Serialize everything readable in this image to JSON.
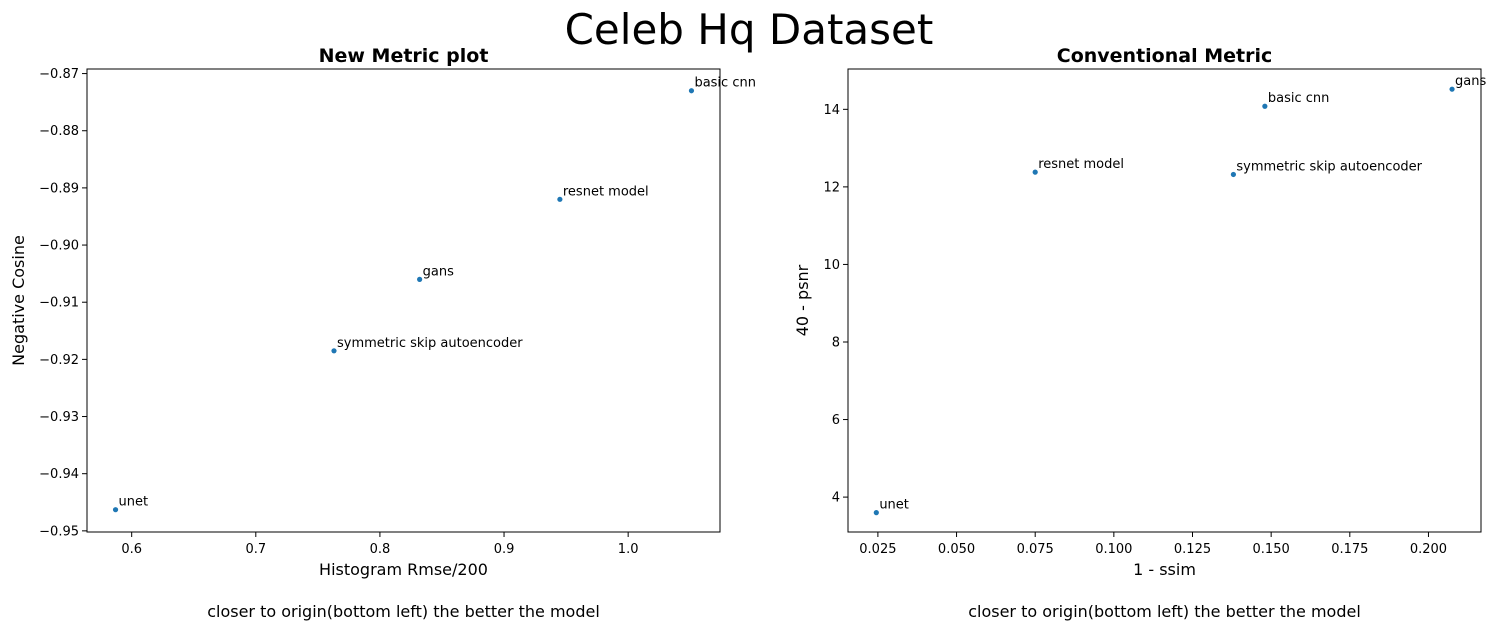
{
  "figure": {
    "title": "Celeb Hq Dataset"
  },
  "chart_data": [
    {
      "type": "scatter",
      "title": "New Metric plot",
      "xlabel": "Histogram Rmse/200",
      "ylabel": "Negative Cosine",
      "caption": "closer to origin(bottom left) the better the model",
      "xlim": [
        0.564,
        1.074
      ],
      "ylim": [
        -0.9502,
        -0.8692
      ],
      "xticks": [
        0.6,
        0.7,
        0.8,
        0.9,
        1.0
      ],
      "xtick_labels": [
        "0.6",
        "0.7",
        "0.8",
        "0.9",
        "1.0"
      ],
      "yticks": [
        -0.95,
        -0.94,
        -0.93,
        -0.92,
        -0.91,
        -0.9,
        -0.89,
        -0.88,
        -0.87
      ],
      "ytick_labels": [
        "−0.95",
        "−0.94",
        "−0.93",
        "−0.92",
        "−0.91",
        "−0.90",
        "−0.89",
        "−0.88",
        "−0.87"
      ],
      "grid": false,
      "color": "#1f77b4",
      "points": [
        {
          "label": "basic cnn",
          "x": 1.051,
          "y": -0.873
        },
        {
          "label": "resnet model",
          "x": 0.945,
          "y": -0.892
        },
        {
          "label": "gans",
          "x": 0.832,
          "y": -0.906
        },
        {
          "label": "symmetric skip autoencoder",
          "x": 0.763,
          "y": -0.9185
        },
        {
          "label": "unet",
          "x": 0.587,
          "y": -0.9463
        }
      ]
    },
    {
      "type": "scatter",
      "title": "Conventional Metric",
      "xlabel": "1 - ssim",
      "ylabel": "40 - psnr",
      "caption": "closer to origin(bottom left) the better the model",
      "xlim": [
        0.0155,
        0.2167
      ],
      "ylim": [
        3.1,
        15.04
      ],
      "xticks": [
        0.025,
        0.05,
        0.075,
        0.1,
        0.125,
        0.15,
        0.175,
        0.2
      ],
      "xtick_labels": [
        "0.025",
        "0.050",
        "0.075",
        "0.100",
        "0.125",
        "0.150",
        "0.175",
        "0.200"
      ],
      "yticks": [
        4,
        6,
        8,
        10,
        12,
        14
      ],
      "ytick_labels": [
        "4",
        "6",
        "8",
        "10",
        "12",
        "14"
      ],
      "grid": false,
      "color": "#1f77b4",
      "points": [
        {
          "label": "gans",
          "x": 0.2075,
          "y": 14.52
        },
        {
          "label": "basic cnn",
          "x": 0.148,
          "y": 14.08
        },
        {
          "label": "resnet model",
          "x": 0.075,
          "y": 12.38
        },
        {
          "label": "symmetric skip autoencoder",
          "x": 0.138,
          "y": 12.32
        },
        {
          "label": "unet",
          "x": 0.0245,
          "y": 3.6
        }
      ]
    }
  ]
}
